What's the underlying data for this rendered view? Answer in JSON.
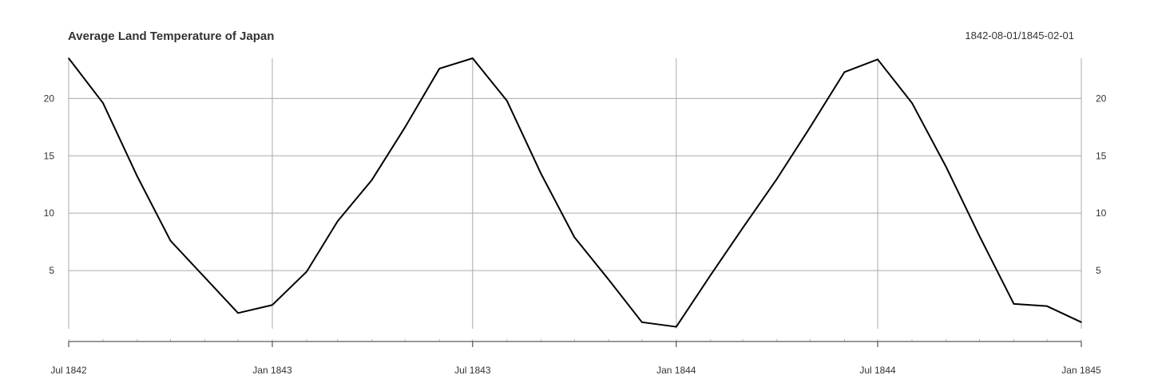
{
  "chart_data": {
    "type": "line",
    "title": "Average Land Temperature of Japan",
    "subtitle": "1842-08-01/1845-02-01",
    "xlabel": "",
    "ylabel": "",
    "x": [
      "1842-07-01",
      "1842-08-01",
      "1842-09-01",
      "1842-10-01",
      "1842-11-01",
      "1842-12-01",
      "1843-01-01",
      "1843-02-01",
      "1843-03-01",
      "1843-04-01",
      "1843-05-01",
      "1843-06-01",
      "1843-07-01",
      "1843-08-01",
      "1843-09-01",
      "1843-10-01",
      "1843-11-01",
      "1843-12-01",
      "1844-01-01",
      "1844-02-01",
      "1844-03-01",
      "1844-04-01",
      "1844-05-01",
      "1844-06-01",
      "1844-07-01",
      "1844-08-01",
      "1844-09-01",
      "1844-10-01",
      "1844-11-01",
      "1844-12-01",
      "1845-01-01"
    ],
    "series": [
      {
        "values": [
          23.5,
          19.6,
          13.2,
          7.6,
          4.4,
          1.3,
          2.0,
          4.9,
          9.3,
          12.9,
          17.5,
          22.6,
          23.5,
          19.8,
          13.4,
          7.9,
          4.2,
          0.5,
          0.1,
          4.6,
          8.7,
          13.0,
          17.5,
          22.3,
          23.4,
          19.6,
          14.0,
          8.0,
          2.1,
          1.9,
          0.5
        ]
      }
    ],
    "x_ticks": [
      "Jul 1842",
      "Jan 1843",
      "Jul 1843",
      "Jan 1844",
      "Jul 1844",
      "Jan 1845"
    ],
    "y_ticks": [
      "5",
      "10",
      "15",
      "20"
    ],
    "ylim": [
      0,
      23.5
    ],
    "grid": true,
    "line_color": "#000000",
    "grid_color": "#aaaaaa"
  }
}
